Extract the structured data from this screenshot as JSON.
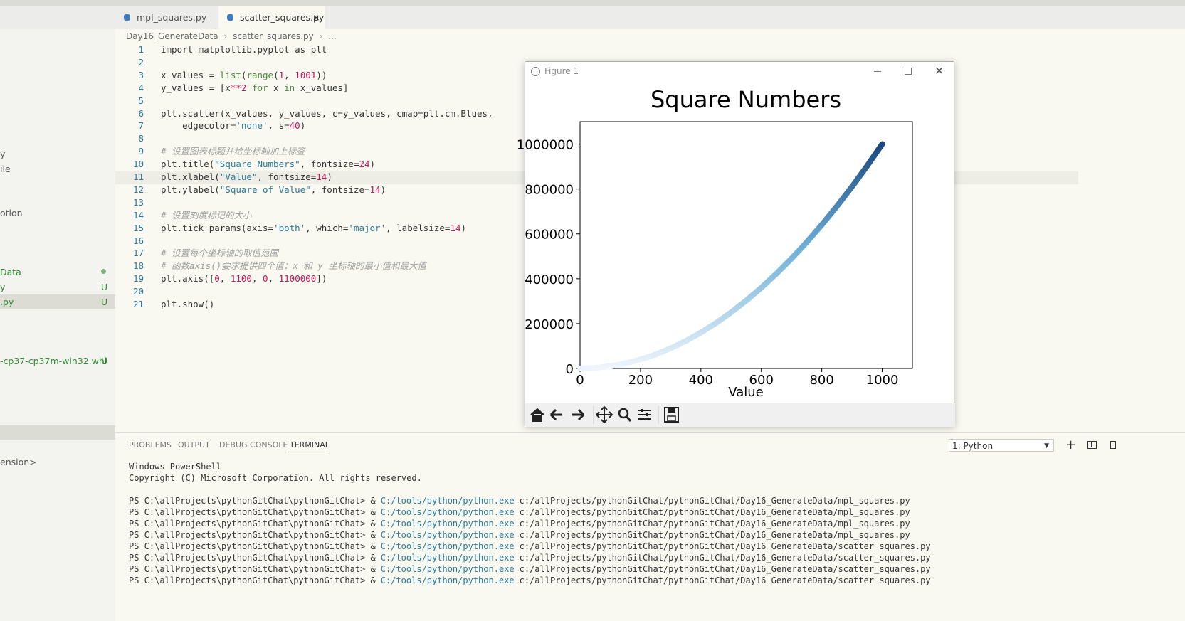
{
  "tabs": [
    {
      "label": "mpl_squares.py"
    },
    {
      "label": "scatter_squares.py",
      "close": "×"
    }
  ],
  "breadcrumb": [
    "Day16_GenerateData",
    "scatter_squares.py",
    "..."
  ],
  "sidebar": [
    {
      "label": "y"
    },
    {
      "label": "ile"
    },
    {
      "label": "otion"
    },
    {
      "label": "Data"
    },
    {
      "label": "y",
      "badge": "U"
    },
    {
      "label": ".py",
      "badge": "U"
    },
    {
      "label": "-cp37-cp37m-win32.whl",
      "badge": "U"
    },
    {
      "label": "ension>"
    }
  ],
  "code": {
    "lines": [
      {
        "n": 1,
        "tokens": [
          [
            "import matplotlib.pyplot as plt",
            "p"
          ]
        ]
      },
      {
        "n": 2,
        "tokens": []
      },
      {
        "n": 3,
        "tokens": [
          [
            "x_values = ",
            "p"
          ],
          [
            "list",
            "f"
          ],
          [
            "(",
            "p"
          ],
          [
            "range",
            "f"
          ],
          [
            "(",
            "p"
          ],
          [
            "1",
            "n"
          ],
          [
            ", ",
            "p"
          ],
          [
            "1001",
            "n"
          ],
          [
            "))",
            "p"
          ]
        ]
      },
      {
        "n": 4,
        "tokens": [
          [
            "y_values = [x",
            "p"
          ],
          [
            "**2",
            "n"
          ],
          [
            " ",
            "p"
          ],
          [
            "for",
            "k"
          ],
          [
            " x ",
            "p"
          ],
          [
            "in",
            "k"
          ],
          [
            " x_values]",
            "p"
          ]
        ]
      },
      {
        "n": 5,
        "tokens": []
      },
      {
        "n": 6,
        "tokens": [
          [
            "plt.scatter(x_values, y_values, c=y_values, cmap=plt.cm.Blues,",
            "p"
          ]
        ]
      },
      {
        "n": 7,
        "tokens": [
          [
            "    edgecolor=",
            "p"
          ],
          [
            "'none'",
            "s"
          ],
          [
            ", s=",
            "p"
          ],
          [
            "40",
            "n"
          ],
          [
            ")",
            "p"
          ]
        ]
      },
      {
        "n": 8,
        "tokens": []
      },
      {
        "n": 9,
        "tokens": [
          [
            "# 设置图表标题并给坐标轴加上标签",
            "c"
          ]
        ]
      },
      {
        "n": 10,
        "tokens": [
          [
            "plt.title(",
            "p"
          ],
          [
            "\"Square Numbers\"",
            "s"
          ],
          [
            ", fontsize=",
            "p"
          ],
          [
            "24",
            "n"
          ],
          [
            ")",
            "p"
          ]
        ]
      },
      {
        "n": 11,
        "tokens": [
          [
            "plt.xlabel(",
            "p"
          ],
          [
            "\"Value\"",
            "s"
          ],
          [
            ", fontsize=",
            "p"
          ],
          [
            "14",
            "n"
          ],
          [
            ")",
            "p"
          ]
        ]
      },
      {
        "n": 12,
        "tokens": [
          [
            "plt.ylabel(",
            "p"
          ],
          [
            "\"Square of Value\"",
            "s"
          ],
          [
            ", fontsize=",
            "p"
          ],
          [
            "14",
            "n"
          ],
          [
            ")",
            "p"
          ]
        ]
      },
      {
        "n": 13,
        "tokens": []
      },
      {
        "n": 14,
        "tokens": [
          [
            "# 设置刻度标记的大小",
            "c"
          ]
        ]
      },
      {
        "n": 15,
        "tokens": [
          [
            "plt.tick_params(axis=",
            "p"
          ],
          [
            "'both'",
            "s"
          ],
          [
            ", which=",
            "p"
          ],
          [
            "'major'",
            "s"
          ],
          [
            ", labelsize=",
            "p"
          ],
          [
            "14",
            "n"
          ],
          [
            ")",
            "p"
          ]
        ]
      },
      {
        "n": 16,
        "tokens": []
      },
      {
        "n": 17,
        "tokens": [
          [
            "# 设置每个坐标轴的取值范围",
            "c"
          ]
        ]
      },
      {
        "n": 18,
        "tokens": [
          [
            "# 函数axis()要求提供四个值：x 和 y 坐标轴的最小值和最大值",
            "c"
          ]
        ]
      },
      {
        "n": 19,
        "tokens": [
          [
            "plt.axis([",
            "p"
          ],
          [
            "0",
            "n"
          ],
          [
            ", ",
            "p"
          ],
          [
            "1100",
            "n"
          ],
          [
            ", ",
            "p"
          ],
          [
            "0",
            "n"
          ],
          [
            ", ",
            "p"
          ],
          [
            "1100000",
            "n"
          ],
          [
            "])",
            "p"
          ]
        ]
      },
      {
        "n": 20,
        "tokens": []
      },
      {
        "n": 21,
        "tokens": [
          [
            "plt.show()",
            "p"
          ]
        ]
      }
    ]
  },
  "figure_window": {
    "title": "Figure 1"
  },
  "chart_data": {
    "type": "scatter",
    "title": "Square Numbers",
    "x_label": "Value",
    "x": [
      1,
      50,
      100,
      150,
      200,
      250,
      300,
      350,
      400,
      450,
      500,
      550,
      600,
      650,
      700,
      750,
      800,
      850,
      900,
      950,
      1000
    ],
    "values": [
      1,
      2500,
      10000,
      22500,
      40000,
      62500,
      90000,
      122500,
      160000,
      202500,
      250000,
      302500,
      360000,
      422500,
      490000,
      562500,
      640000,
      722500,
      810000,
      902500,
      1000000
    ],
    "color_range": [
      "#eef5fc",
      "#6baed6",
      "#08306b"
    ],
    "xlim": [
      0,
      1100
    ],
    "ylim": [
      0,
      1100000
    ],
    "xticks": [
      0,
      200,
      400,
      600,
      800,
      1000
    ],
    "yticks": [
      0,
      200000,
      400000,
      600000,
      800000,
      1000000
    ]
  },
  "panel": {
    "tabs": [
      "PROBLEMS",
      "OUTPUT",
      "DEBUG CONSOLE",
      "TERMINAL"
    ],
    "terminal_select": "1: Python",
    "terminal_header": [
      "Windows PowerShell",
      "Copyright (C) Microsoft Corporation. All rights reserved."
    ],
    "commands": [
      {
        "prompt": "PS C:\\allProjects\\pythonGitChat\\pythonGitChat> &",
        "exe": "C:/tools/python/python.exe",
        "script": "c:/allProjects/pythonGitChat/pythonGitChat/Day16_GenerateData/mpl_squares.py"
      },
      {
        "prompt": "PS C:\\allProjects\\pythonGitChat\\pythonGitChat> &",
        "exe": "C:/tools/python/python.exe",
        "script": "c:/allProjects/pythonGitChat/pythonGitChat/Day16_GenerateData/mpl_squares.py"
      },
      {
        "prompt": "PS C:\\allProjects\\pythonGitChat\\pythonGitChat> &",
        "exe": "C:/tools/python/python.exe",
        "script": "c:/allProjects/pythonGitChat/pythonGitChat/Day16_GenerateData/mpl_squares.py"
      },
      {
        "prompt": "PS C:\\allProjects\\pythonGitChat\\pythonGitChat> &",
        "exe": "C:/tools/python/python.exe",
        "script": "c:/allProjects/pythonGitChat/pythonGitChat/Day16_GenerateData/mpl_squares.py"
      },
      {
        "prompt": "PS C:\\allProjects\\pythonGitChat\\pythonGitChat> &",
        "exe": "C:/tools/python/python.exe",
        "script": "c:/allProjects/pythonGitChat/pythonGitChat/Day16_GenerateData/scatter_squares.py"
      },
      {
        "prompt": "PS C:\\allProjects\\pythonGitChat\\pythonGitChat> &",
        "exe": "C:/tools/python/python.exe",
        "script": "c:/allProjects/pythonGitChat/pythonGitChat/Day16_GenerateData/scatter_squares.py"
      },
      {
        "prompt": "PS C:\\allProjects\\pythonGitChat\\pythonGitChat> &",
        "exe": "C:/tools/python/python.exe",
        "script": "c:/allProjects/pythonGitChat/pythonGitChat/Day16_GenerateData/scatter_squares.py"
      },
      {
        "prompt": "PS C:\\allProjects\\pythonGitChat\\pythonGitChat> &",
        "exe": "C:/tools/python/python.exe",
        "script": "c:/allProjects/pythonGitChat/pythonGitChat/Day16_GenerateData/scatter_squares.py"
      }
    ]
  }
}
